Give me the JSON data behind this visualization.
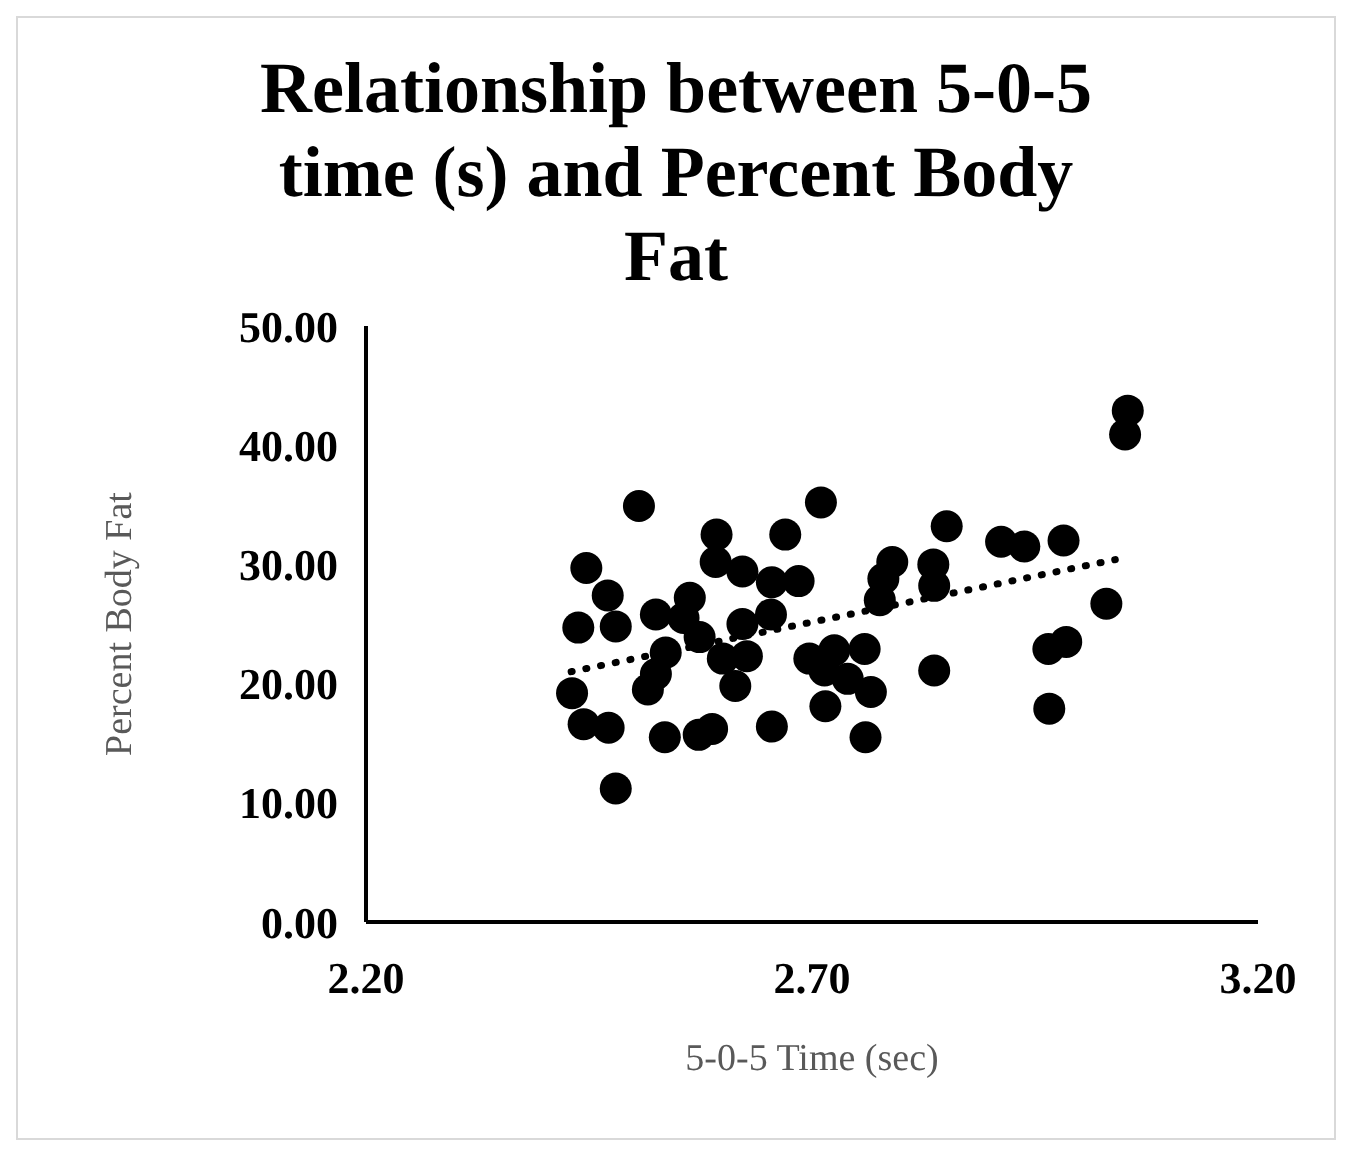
{
  "chart_data": {
    "type": "scatter",
    "title": "Relationship between 5-0-5 time (s) and Percent Body Fat",
    "xlabel": "5-0-5 Time (sec)",
    "ylabel": "Percent Body Fat",
    "xlim": [
      2.2,
      3.2
    ],
    "xticks": [
      {
        "value": 2.2,
        "label": "2.20"
      },
      {
        "value": 2.7,
        "label": "2.70"
      },
      {
        "value": 3.2,
        "label": "3.20"
      }
    ],
    "ylim": [
      0,
      50
    ],
    "yticks": [
      {
        "value": 0,
        "label": "0.00"
      },
      {
        "value": 10,
        "label": "10.00"
      },
      {
        "value": 20,
        "label": "20.00"
      },
      {
        "value": 30,
        "label": "30.00"
      },
      {
        "value": 40,
        "label": "40.00"
      },
      {
        "value": 50,
        "label": "50.00"
      }
    ],
    "grid": false,
    "marker": "circle",
    "series": [
      {
        "color": "#000000",
        "x": [
          3.054,
          3.051,
          2.506,
          2.71,
          2.851,
          2.593,
          2.67,
          2.912,
          2.938,
          2.982,
          2.447,
          2.592,
          2.622,
          2.79,
          2.78,
          2.836,
          2.837,
          2.685,
          2.655,
          2.471,
          2.563,
          2.776,
          3.03,
          2.654,
          2.525,
          2.438,
          2.48,
          2.622,
          2.574,
          2.985,
          2.965,
          2.536,
          2.6,
          2.627,
          2.697,
          2.725,
          2.759,
          2.714,
          2.74,
          2.837,
          2.525,
          2.431,
          2.614,
          2.766,
          2.715,
          2.966,
          2.444,
          2.472,
          2.535,
          2.573,
          2.588,
          2.655,
          2.76,
          2.48,
          2.516,
          2.556
        ],
        "values": [
          42.9,
          40.9,
          34.9,
          35.2,
          33.2,
          32.5,
          32.5,
          31.9,
          31.5,
          32.0,
          29.7,
          30.2,
          29.4,
          30.2,
          28.8,
          30.0,
          28.2,
          28.6,
          28.5,
          27.4,
          27.2,
          27.0,
          26.7,
          25.8,
          25.8,
          24.7,
          24.8,
          25.0,
          23.9,
          23.5,
          22.9,
          22.6,
          22.1,
          22.3,
          22.1,
          22.8,
          22.9,
          21.1,
          20.4,
          21.1,
          20.8,
          19.2,
          19.8,
          19.3,
          18.1,
          17.9,
          16.6,
          16.3,
          15.5,
          15.7,
          16.2,
          16.4,
          15.5,
          11.2,
          19.5,
          25.5
        ]
      },
      {
        "type": "line",
        "color": "#000000",
        "line_style": "dotted",
        "marker": "none",
        "x": [
          2.43,
          3.04
        ],
        "values": [
          21.0,
          30.4
        ]
      }
    ]
  }
}
